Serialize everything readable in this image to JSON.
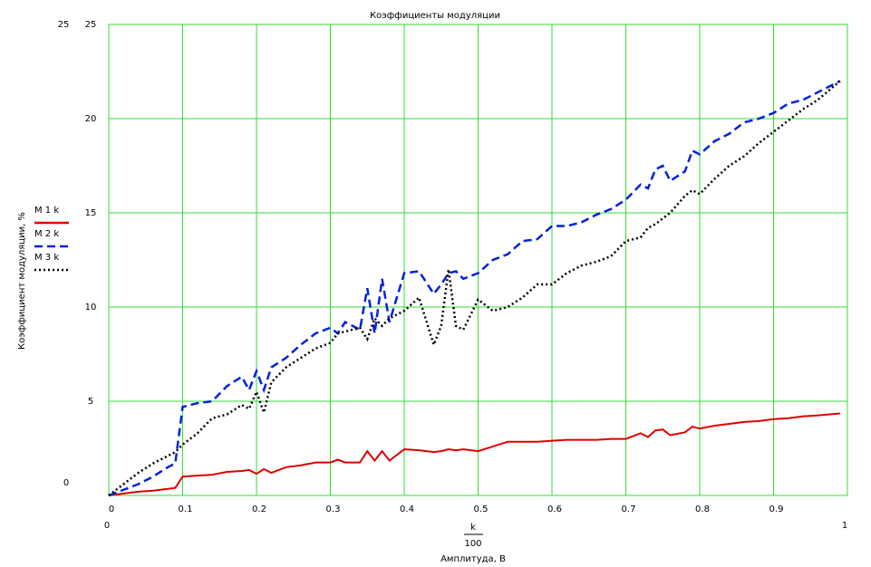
{
  "chart_data": {
    "type": "line",
    "title": "Коэффициенты модуляции",
    "ylabel": "Коэффициент модуляции, %",
    "x_numerator": "k",
    "x_denominator": "100",
    "xlabel": "Амплитуда, В",
    "x": [
      0,
      0.02,
      0.04,
      0.06,
      0.08,
      0.09,
      0.1,
      0.12,
      0.14,
      0.16,
      0.18,
      0.19,
      0.2,
      0.21,
      0.22,
      0.24,
      0.26,
      0.28,
      0.3,
      0.31,
      0.32,
      0.34,
      0.35,
      0.36,
      0.37,
      0.38,
      0.4,
      0.42,
      0.44,
      0.45,
      0.46,
      0.47,
      0.48,
      0.5,
      0.52,
      0.54,
      0.56,
      0.58,
      0.6,
      0.62,
      0.64,
      0.66,
      0.68,
      0.7,
      0.72,
      0.73,
      0.74,
      0.75,
      0.76,
      0.78,
      0.79,
      0.8,
      0.82,
      0.84,
      0.86,
      0.88,
      0.9,
      0.92,
      0.94,
      0.96,
      0.99
    ],
    "series": [
      {
        "name": "M 1 k",
        "color": "#e00000",
        "dash": "solid",
        "values": [
          0,
          0.1,
          0.2,
          0.25,
          0.35,
          0.4,
          1.0,
          1.05,
          1.1,
          1.25,
          1.3,
          1.35,
          1.15,
          1.4,
          1.2,
          1.5,
          1.6,
          1.75,
          1.75,
          1.9,
          1.75,
          1.75,
          2.35,
          1.85,
          2.35,
          1.85,
          2.45,
          2.4,
          2.3,
          2.35,
          2.45,
          2.4,
          2.45,
          2.35,
          2.6,
          2.85,
          2.85,
          2.85,
          2.9,
          2.95,
          2.95,
          2.95,
          3.0,
          3.0,
          3.3,
          3.1,
          3.45,
          3.5,
          3.2,
          3.35,
          3.65,
          3.55,
          3.7,
          3.8,
          3.9,
          3.95,
          4.05,
          4.1,
          4.2,
          4.25,
          4.35
        ]
      },
      {
        "name": "M 2 k",
        "color": "#0022dd",
        "dash": "dashed",
        "values": [
          0,
          0.3,
          0.6,
          1.0,
          1.5,
          1.7,
          4.7,
          4.9,
          5.0,
          5.8,
          6.3,
          5.6,
          6.6,
          5.6,
          6.8,
          7.3,
          8.0,
          8.6,
          8.9,
          8.6,
          9.2,
          8.8,
          11.0,
          8.6,
          11.5,
          9.2,
          11.8,
          11.9,
          10.7,
          11.2,
          11.8,
          11.9,
          11.5,
          11.8,
          12.5,
          12.8,
          13.5,
          13.6,
          14.3,
          14.3,
          14.5,
          14.9,
          15.2,
          15.7,
          16.5,
          16.3,
          17.3,
          17.5,
          16.7,
          17.2,
          18.3,
          18.1,
          18.8,
          19.2,
          19.8,
          20.0,
          20.3,
          20.8,
          21.0,
          21.4,
          22.0
        ]
      },
      {
        "name": "M 3 k",
        "color": "#000000",
        "dash": "dotted",
        "values": [
          0,
          0.6,
          1.2,
          1.7,
          2.1,
          2.3,
          2.7,
          3.3,
          4.1,
          4.3,
          4.8,
          4.6,
          5.5,
          4.4,
          6.0,
          6.8,
          7.3,
          7.8,
          8.1,
          8.6,
          8.7,
          8.9,
          8.3,
          9.4,
          9.0,
          9.4,
          9.8,
          10.5,
          8.0,
          9.0,
          12.0,
          9.0,
          8.8,
          10.4,
          9.8,
          10.0,
          10.5,
          11.2,
          11.2,
          11.8,
          12.2,
          12.4,
          12.7,
          13.5,
          13.7,
          14.2,
          14.4,
          14.7,
          15.0,
          15.9,
          16.2,
          16.0,
          16.8,
          17.5,
          18.0,
          18.7,
          19.3,
          19.9,
          20.5,
          21.0,
          22.0
        ]
      }
    ],
    "xlim": [
      0,
      1
    ],
    "xticks": [
      0,
      0.1,
      0.2,
      0.3,
      0.4,
      0.5,
      0.6,
      0.7,
      0.8,
      0.9
    ],
    "ylim": [
      0,
      25
    ],
    "yticks": [
      5,
      10,
      15,
      20,
      25
    ],
    "grid": true,
    "grid_color": "#33dd33",
    "legend": "left"
  }
}
